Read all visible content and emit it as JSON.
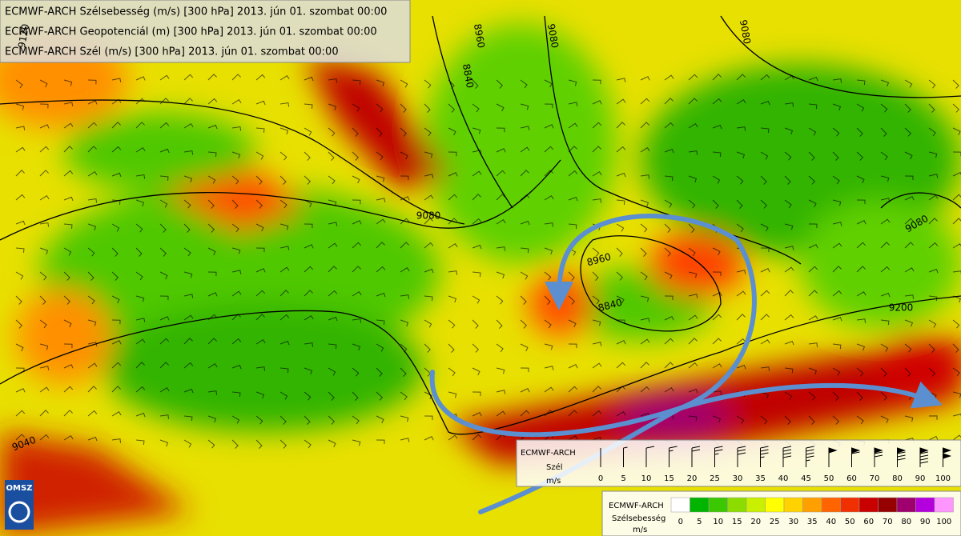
{
  "header": {
    "lines": [
      "ECMWF-ARCH Szélsebesség (m/s) [300 hPa] 2013. jún 01. szombat 00:00",
      "ECMWF-ARCH Geopotenciál (m) [300 hPa] 2013. jún 01. szombat 00:00",
      "ECMWF-ARCH Szél (m/s) [300 hPa] 2013. jún 01. szombat 00:00"
    ]
  },
  "contour_labels": [
    "9120",
    "8840",
    "8960",
    "9080",
    "9080",
    "9080",
    "8960",
    "8840",
    "9200",
    "9080",
    "9040"
  ],
  "wind_legend": {
    "title": "ECMWF-ARCH",
    "label": "Szél",
    "unit": "m/s",
    "values": [
      0,
      5,
      10,
      15,
      20,
      25,
      30,
      35,
      40,
      45,
      50,
      60,
      70,
      80,
      90,
      100
    ]
  },
  "color_legend": {
    "title": "ECMWF-ARCH",
    "label": "Szélsebesség",
    "unit": "m/s",
    "values": [
      0,
      5,
      10,
      15,
      20,
      25,
      30,
      35,
      40,
      50,
      60,
      70,
      80,
      90,
      100
    ],
    "colors": [
      "#ffffff",
      "#00b400",
      "#3cc800",
      "#8cdc00",
      "#c8f000",
      "#ffff00",
      "#ffd200",
      "#ffa000",
      "#ff6400",
      "#f03000",
      "#c80000",
      "#960000",
      "#a0006e",
      "#b400dc",
      "#ff96ff"
    ]
  },
  "logo": "OMSZ"
}
